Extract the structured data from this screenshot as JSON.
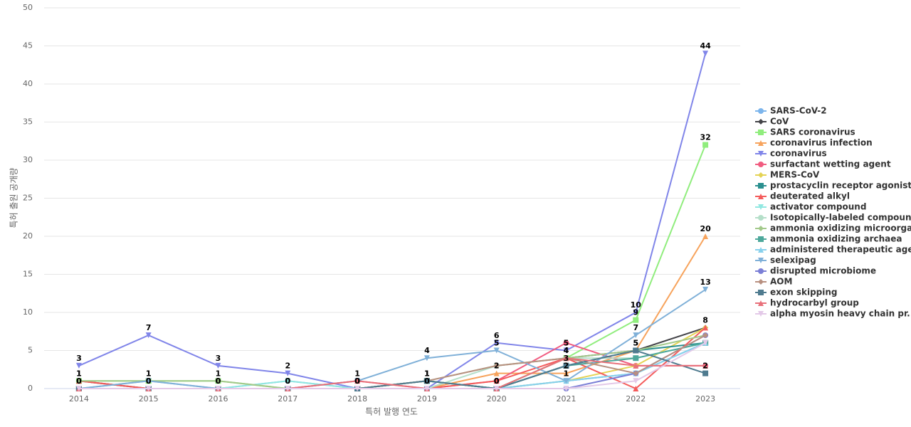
{
  "chart_data": {
    "type": "line",
    "x_label": "특허 발행 연도",
    "y_label": "특허 출원 공개량",
    "categories": [
      "2014",
      "2015",
      "2016",
      "2017",
      "2018",
      "2019",
      "2020",
      "2021",
      "2022",
      "2023"
    ],
    "ylim": [
      0,
      50
    ],
    "yticks": [
      0,
      5,
      10,
      15,
      20,
      25,
      30,
      35,
      40,
      45,
      50
    ],
    "grid": true,
    "legend": "right",
    "series": [
      {
        "name": "SARS-CoV-2",
        "color": "#7cb5ec",
        "marker": "circle",
        "values": [
          0,
          1,
          0,
          1,
          0,
          1,
          0,
          1,
          2,
          6
        ]
      },
      {
        "name": "CoV",
        "color": "#434348",
        "marker": "diamond",
        "show_labels": true,
        "values": [
          1,
          0,
          0,
          0,
          0,
          1,
          0,
          4,
          5,
          8
        ]
      },
      {
        "name": "SARS coronavirus",
        "color": "#90ed7d",
        "marker": "square",
        "show_labels": true,
        "values": [
          1,
          1,
          1,
          0,
          0,
          1,
          0,
          4,
          9,
          32
        ]
      },
      {
        "name": "coronavirus infection",
        "color": "#f7a35c",
        "marker": "triangle",
        "show_labels": true,
        "values": [
          0,
          0,
          0,
          0,
          0,
          0,
          2,
          2,
          5,
          20
        ]
      },
      {
        "name": "coronavirus",
        "color": "#8085e9",
        "marker": "triangle-down",
        "show_labels": true,
        "values": [
          3,
          7,
          3,
          2,
          0,
          0,
          6,
          5,
          10,
          44
        ]
      },
      {
        "name": "surfactant wetting agent",
        "color": "#f15c80",
        "marker": "circle",
        "values": [
          0,
          0,
          0,
          0,
          1,
          0,
          1,
          6,
          3,
          3
        ]
      },
      {
        "name": "MERS-CoV",
        "color": "#e4d354",
        "marker": "diamond",
        "values": [
          0,
          0,
          0,
          0,
          0,
          0,
          0,
          1,
          3,
          8
        ]
      },
      {
        "name": "prostacyclin receptor agonist",
        "color": "#2b908f",
        "marker": "square",
        "values": [
          0,
          0,
          0,
          0,
          0,
          1,
          0,
          3,
          5,
          6
        ]
      },
      {
        "name": "deuterated alkyl",
        "color": "#f45b5b",
        "marker": "triangle",
        "values": [
          1,
          0,
          0,
          0,
          0,
          0,
          1,
          4,
          0,
          8
        ]
      },
      {
        "name": "activator compound",
        "color": "#91e8e1",
        "marker": "triangle-down",
        "values": [
          0,
          0,
          0,
          1,
          0,
          0,
          0,
          1,
          2,
          6
        ]
      },
      {
        "name": "Isotopically-labeled compound",
        "color": "#b5dfc9",
        "marker": "circle",
        "values": [
          0,
          0,
          0,
          0,
          0,
          0,
          3,
          4,
          4,
          6
        ]
      },
      {
        "name": "ammonia oxidizing microorga...",
        "color": "#a3c98b",
        "marker": "diamond",
        "values": [
          1,
          1,
          1,
          0,
          0,
          1,
          3,
          4,
          5,
          7
        ]
      },
      {
        "name": "ammonia oxidizing archaea",
        "color": "#4da89b",
        "marker": "square",
        "values": [
          0,
          0,
          0,
          0,
          0,
          0,
          0,
          3,
          4,
          6
        ]
      },
      {
        "name": "administered therapeutic agent",
        "color": "#87d0ec",
        "marker": "triangle",
        "values": [
          0,
          0,
          0,
          0,
          0,
          0,
          0,
          1,
          2,
          6
        ]
      },
      {
        "name": "selexipag",
        "color": "#7fb0d8",
        "marker": "triangle-down",
        "show_labels": true,
        "values": [
          0,
          1,
          0,
          0,
          1,
          4,
          5,
          1,
          7,
          13
        ]
      },
      {
        "name": "disrupted microbiome",
        "color": "#7b7fd6",
        "marker": "circle",
        "values": [
          0,
          0,
          0,
          0,
          0,
          0,
          0,
          0,
          2,
          7
        ]
      },
      {
        "name": "AOM",
        "color": "#b89080",
        "marker": "diamond",
        "values": [
          0,
          0,
          0,
          0,
          0,
          1,
          3,
          4,
          2,
          7
        ]
      },
      {
        "name": "exon skipping",
        "color": "#4f7b8f",
        "marker": "square",
        "show_labels": true,
        "values": [
          0,
          0,
          0,
          0,
          0,
          1,
          0,
          3,
          5,
          2
        ]
      },
      {
        "name": "hydrocarbyl group",
        "color": "#e8707a",
        "marker": "triangle",
        "values": [
          0,
          0,
          0,
          0,
          1,
          0,
          0,
          4,
          3,
          3
        ]
      },
      {
        "name": "alpha myosin heavy chain pr...",
        "color": "#e3c9e8",
        "marker": "triangle-down",
        "values": [
          0,
          0,
          0,
          0,
          0,
          0,
          0,
          0,
          1,
          6
        ]
      }
    ]
  }
}
